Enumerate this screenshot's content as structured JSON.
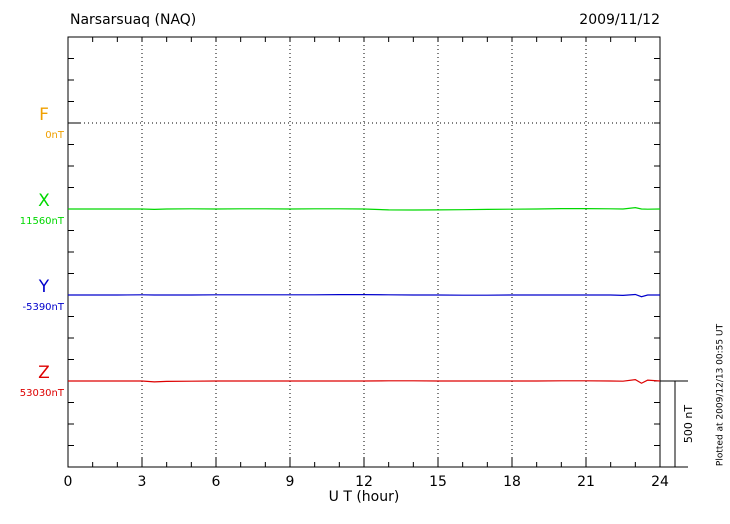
{
  "chart_data": {
    "type": "line",
    "title": "Narsarsuaq (NAQ)",
    "date": "2009/11/12",
    "xlabel": "U T (hour)",
    "footnote": "Plotted at 2009/12/13 00:55 UT",
    "x": [
      0,
      1,
      2,
      3,
      3.5,
      4,
      5,
      6,
      7,
      8,
      9,
      10,
      11,
      12,
      13,
      14,
      15,
      16,
      17,
      18,
      19,
      20,
      21,
      22,
      22.5,
      23,
      23.25,
      23.5,
      24
    ],
    "xlim": [
      0,
      24
    ],
    "xticks": [
      0,
      3,
      6,
      9,
      12,
      15,
      18,
      21,
      24
    ],
    "ylim": [
      0,
      2500
    ],
    "grid": true,
    "scale_bar": {
      "value": 500,
      "label": "500 nT"
    },
    "series": [
      {
        "name": "F",
        "baseline_label": "0nT",
        "color": "#f0a000",
        "values": [
          null,
          null,
          null,
          null,
          null,
          null,
          null,
          null,
          null,
          null,
          null,
          null,
          null,
          null,
          null,
          null,
          null,
          null,
          null,
          null,
          null,
          null,
          null,
          null,
          null,
          null,
          null,
          null,
          null
        ]
      },
      {
        "name": "X",
        "baseline_label": "11560nT",
        "color": "#00d800",
        "values": [
          1500,
          1500,
          1500,
          1500,
          1498,
          1500,
          1501,
          1500,
          1501,
          1501,
          1500,
          1501,
          1501,
          1500,
          1495,
          1494,
          1495,
          1496,
          1498,
          1499,
          1500,
          1502,
          1502,
          1501,
          1500,
          1508,
          1500,
          1499,
          1500
        ]
      },
      {
        "name": "Y",
        "baseline_label": "-5390nT",
        "color": "#0000cc",
        "values": [
          1000,
          1000,
          1000,
          1001,
          1000,
          1000,
          1000,
          1001,
          1001,
          1001,
          1001,
          1001,
          1002,
          1002,
          1001,
          1000,
          1000,
          999,
          999,
          1000,
          1000,
          1000,
          1000,
          1000,
          998,
          1003,
          990,
          1000,
          1000
        ]
      },
      {
        "name": "Z",
        "baseline_label": "53030nT",
        "color": "#dd0000",
        "values": [
          500,
          500,
          500,
          500,
          495,
          498,
          499,
          500,
          500,
          500,
          500,
          500,
          500,
          500,
          501,
          501,
          500,
          500,
          500,
          500,
          500,
          501,
          501,
          500,
          499,
          508,
          487,
          505,
          500
        ]
      }
    ]
  }
}
